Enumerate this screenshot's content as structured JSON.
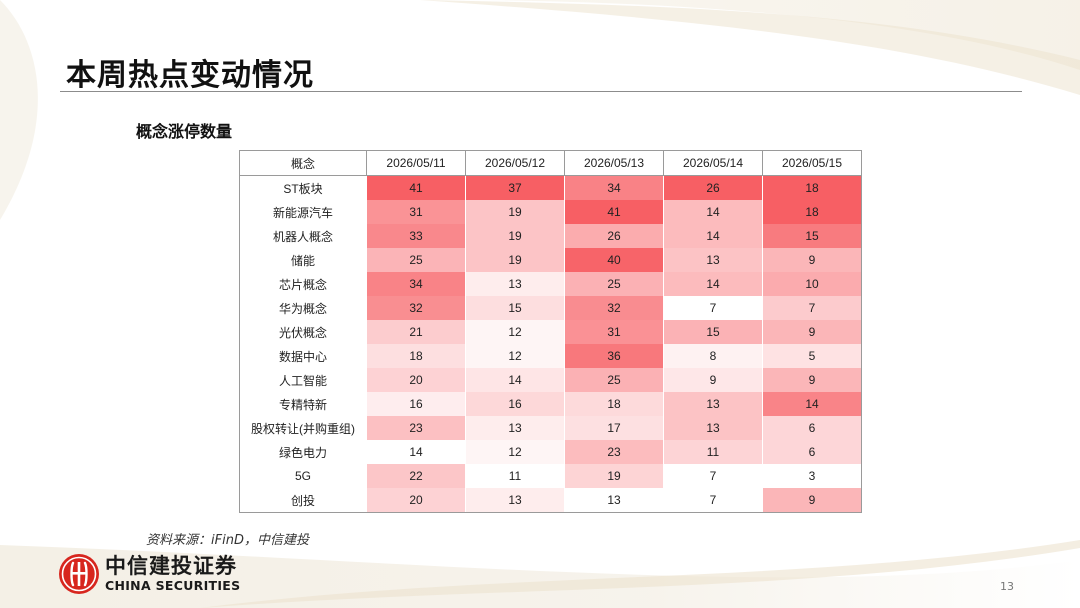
{
  "page": {
    "title": "本周热点变动情况",
    "section_title": "概念涨停数量",
    "source": "资料来源：iFinD，中信建投",
    "page_number": "13"
  },
  "logo": {
    "name_cn": "中信建投证券",
    "name_en": "CHINA SECURITIES",
    "icon": "citic-logo-icon",
    "color": "#d7261e"
  },
  "colors": {
    "heat_low": "#ffffff",
    "heat_high": "#f75f64"
  },
  "chart_data": {
    "type": "heatmap",
    "title": "概念涨停数量",
    "header_label": "概念",
    "columns": [
      "2026/05/11",
      "2026/05/12",
      "2026/05/13",
      "2026/05/14",
      "2026/05/15"
    ],
    "rows": [
      "ST板块",
      "新能源汽车",
      "机器人概念",
      "储能",
      "芯片概念",
      "华为概念",
      "光伏概念",
      "数据中心",
      "人工智能",
      "专精特新",
      "股权转让(并购重组)",
      "绿色电力",
      "5G",
      "创投"
    ],
    "values": [
      [
        41,
        37,
        34,
        26,
        18
      ],
      [
        31,
        19,
        41,
        14,
        18
      ],
      [
        33,
        19,
        26,
        14,
        15
      ],
      [
        25,
        19,
        40,
        13,
        9
      ],
      [
        34,
        13,
        25,
        14,
        10
      ],
      [
        32,
        15,
        32,
        7,
        7
      ],
      [
        21,
        12,
        31,
        15,
        9
      ],
      [
        18,
        12,
        36,
        8,
        5
      ],
      [
        20,
        14,
        25,
        9,
        9
      ],
      [
        16,
        16,
        18,
        13,
        14
      ],
      [
        23,
        13,
        17,
        13,
        6
      ],
      [
        14,
        12,
        23,
        11,
        6
      ],
      [
        22,
        11,
        19,
        7,
        3
      ],
      [
        20,
        13,
        13,
        7,
        9
      ]
    ],
    "color_scale": "per-column"
  }
}
